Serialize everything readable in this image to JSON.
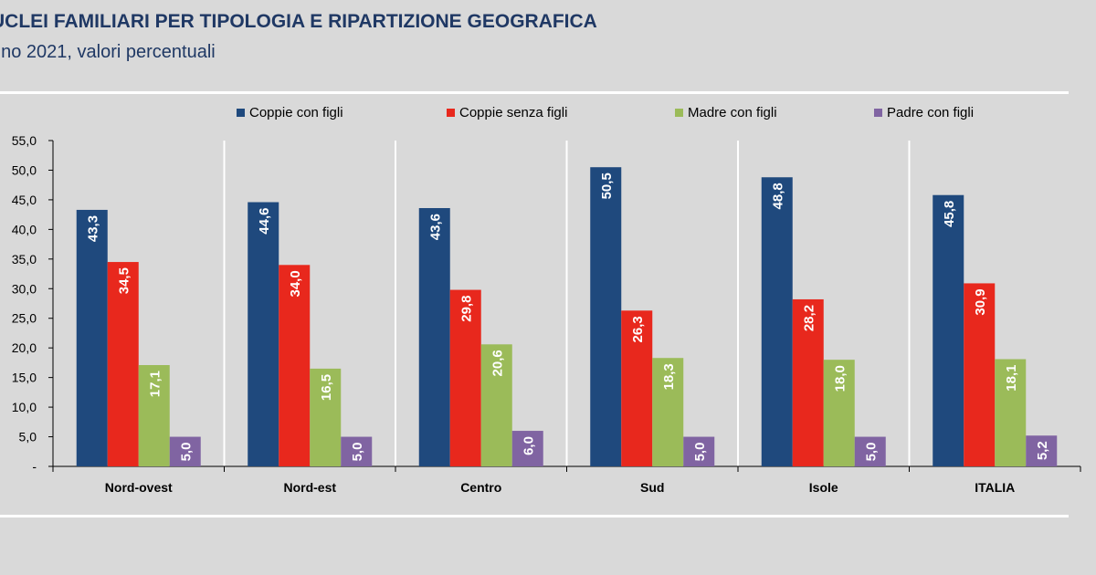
{
  "title": "UCLEI FAMILIARI PER TIPOLOGIA E RIPARTIZIONE GEOGRAFICA",
  "subtitle": "nno 2021, valori percentuali",
  "colors": {
    "background": "#d9d9d9",
    "title": "#1f3864",
    "grid": "#ffffff",
    "axis": "#000000"
  },
  "chart_data": {
    "type": "bar",
    "title": "UCLEI FAMILIARI PER TIPOLOGIA E RIPARTIZIONE GEOGRAFICA",
    "subtitle": "nno 2021, valori percentuali",
    "categories": [
      "Nord-ovest",
      "Nord-est",
      "Centro",
      "Sud",
      "Isole",
      "ITALIA"
    ],
    "series": [
      {
        "name": "Coppie con figli",
        "color": "#1f497d",
        "values": [
          43.3,
          44.6,
          43.6,
          50.5,
          48.8,
          45.8
        ],
        "labels": [
          "43,3",
          "44,6",
          "43,6",
          "50,5",
          "48,8",
          "45,8"
        ]
      },
      {
        "name": "Coppie senza figli",
        "color": "#e8281d",
        "values": [
          34.5,
          34.0,
          29.8,
          26.3,
          28.2,
          30.9
        ],
        "labels": [
          "34,5",
          "34,0",
          "29,8",
          "26,3",
          "28,2",
          "30,9"
        ]
      },
      {
        "name": "Madre con figli",
        "color": "#9bbb59",
        "values": [
          17.1,
          16.5,
          20.6,
          18.3,
          18.0,
          18.1
        ],
        "labels": [
          "17,1",
          "16,5",
          "20,6",
          "18,3",
          "18,0",
          "18,1"
        ]
      },
      {
        "name": "Padre con figli",
        "color": "#8064a2",
        "values": [
          5.0,
          5.0,
          6.0,
          5.0,
          5.0,
          5.2
        ],
        "labels": [
          "5,0",
          "5,0",
          "6,0",
          "5,0",
          "5,0",
          "5,2"
        ]
      }
    ],
    "ylim": [
      0,
      55
    ],
    "yticks": [
      0,
      5,
      10,
      15,
      20,
      25,
      30,
      35,
      40,
      45,
      50,
      55
    ],
    "ytick_labels": [
      "-",
      "5,0",
      "10,0",
      "15,0",
      "20,0",
      "25,0",
      "30,0",
      "35,0",
      "40,0",
      "45,0",
      "50,0",
      "55,0"
    ],
    "xlabel": "",
    "ylabel": "",
    "legend_position": "top",
    "grid": "vertical separators between categories"
  }
}
